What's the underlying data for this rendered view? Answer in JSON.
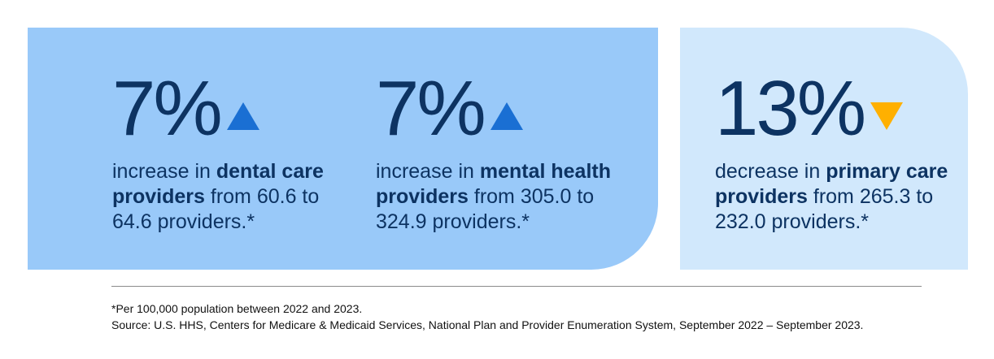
{
  "stats": [
    {
      "percent": "7%",
      "direction": "up",
      "prefix": "increase in ",
      "bold": "dental care providers",
      "suffix": " from 60.6 to 64.6 providers.*"
    },
    {
      "percent": "7%",
      "direction": "up",
      "prefix": "increase in ",
      "bold": "mental health providers",
      "suffix": " from 305.0 to 324.9 providers.*"
    },
    {
      "percent": "13%",
      "direction": "down",
      "prefix": "decrease in ",
      "bold": "primary care providers",
      "suffix": " from 265.3 to 232.0 providers.*"
    }
  ],
  "footnote": {
    "line1": "*Per 100,000 population between 2022 and 2023.",
    "line2": "Source: U.S. HHS, Centers for Medicare & Medicaid Services, National Plan and Provider Enumeration System, September 2022 – September 2023."
  },
  "colors": {
    "increase_panel": "#99c9f9",
    "decrease_panel": "#d1e8fc",
    "text": "#0d3362",
    "up_arrow": "#1a6fd3",
    "down_arrow": "#ffb000"
  }
}
